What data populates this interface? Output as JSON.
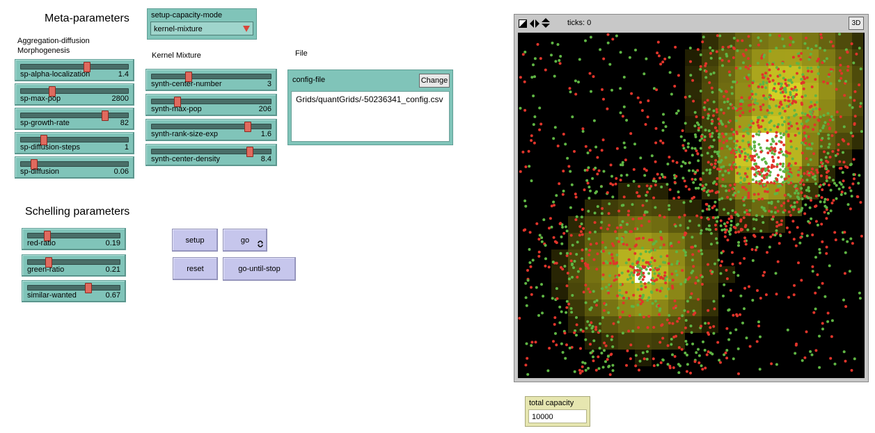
{
  "headings": {
    "meta": "Meta-parameters",
    "agg_line1": "Aggregation-diffusion",
    "agg_line2": "Morphogenesis",
    "kernel": "Kernel Mixture",
    "file": "File",
    "schelling": "Schelling parameters"
  },
  "chooser": {
    "label": "setup-capacity-mode",
    "value": "kernel-mixture"
  },
  "sliders": {
    "aggregation": [
      {
        "name": "sp-alpha-localization",
        "value": "1.4",
        "fraction": 0.62
      },
      {
        "name": "sp-max-pop",
        "value": "2800",
        "fraction": 0.28
      },
      {
        "name": "sp-growth-rate",
        "value": "82",
        "fraction": 0.8
      },
      {
        "name": "sp-diffusion-steps",
        "value": "1",
        "fraction": 0.2
      },
      {
        "name": "sp-diffusion",
        "value": "0.06",
        "fraction": 0.1
      }
    ],
    "kernel": [
      {
        "name": "synth-center-number",
        "value": "3",
        "fraction": 0.3
      },
      {
        "name": "synth-max-pop",
        "value": "206",
        "fraction": 0.2
      },
      {
        "name": "synth-rank-size-exp",
        "value": "1.6",
        "fraction": 0.82
      },
      {
        "name": "synth-center-density",
        "value": "8.4",
        "fraction": 0.84
      }
    ],
    "schelling": [
      {
        "name": "red-ratio",
        "value": "0.19",
        "fraction": 0.19
      },
      {
        "name": "green-ratio",
        "value": "0.21",
        "fraction": 0.21
      },
      {
        "name": "similar-wanted",
        "value": "0.67",
        "fraction": 0.67
      }
    ]
  },
  "file_input": {
    "label": "config-file",
    "change_label": "Change",
    "value": "Grids/quantGrids/-50236341_config.csv"
  },
  "buttons": {
    "setup": "setup",
    "go": "go",
    "reset": "reset",
    "go_until_stop": "go-until-stop"
  },
  "view": {
    "ticks_label": "ticks: 0",
    "three_d_label": "3D"
  },
  "monitor": {
    "label": "total capacity",
    "value": "10000"
  },
  "colors": {
    "agent_red": "#e0352b",
    "agent_green": "#5fb544",
    "patch_high": "#e8e23c"
  }
}
